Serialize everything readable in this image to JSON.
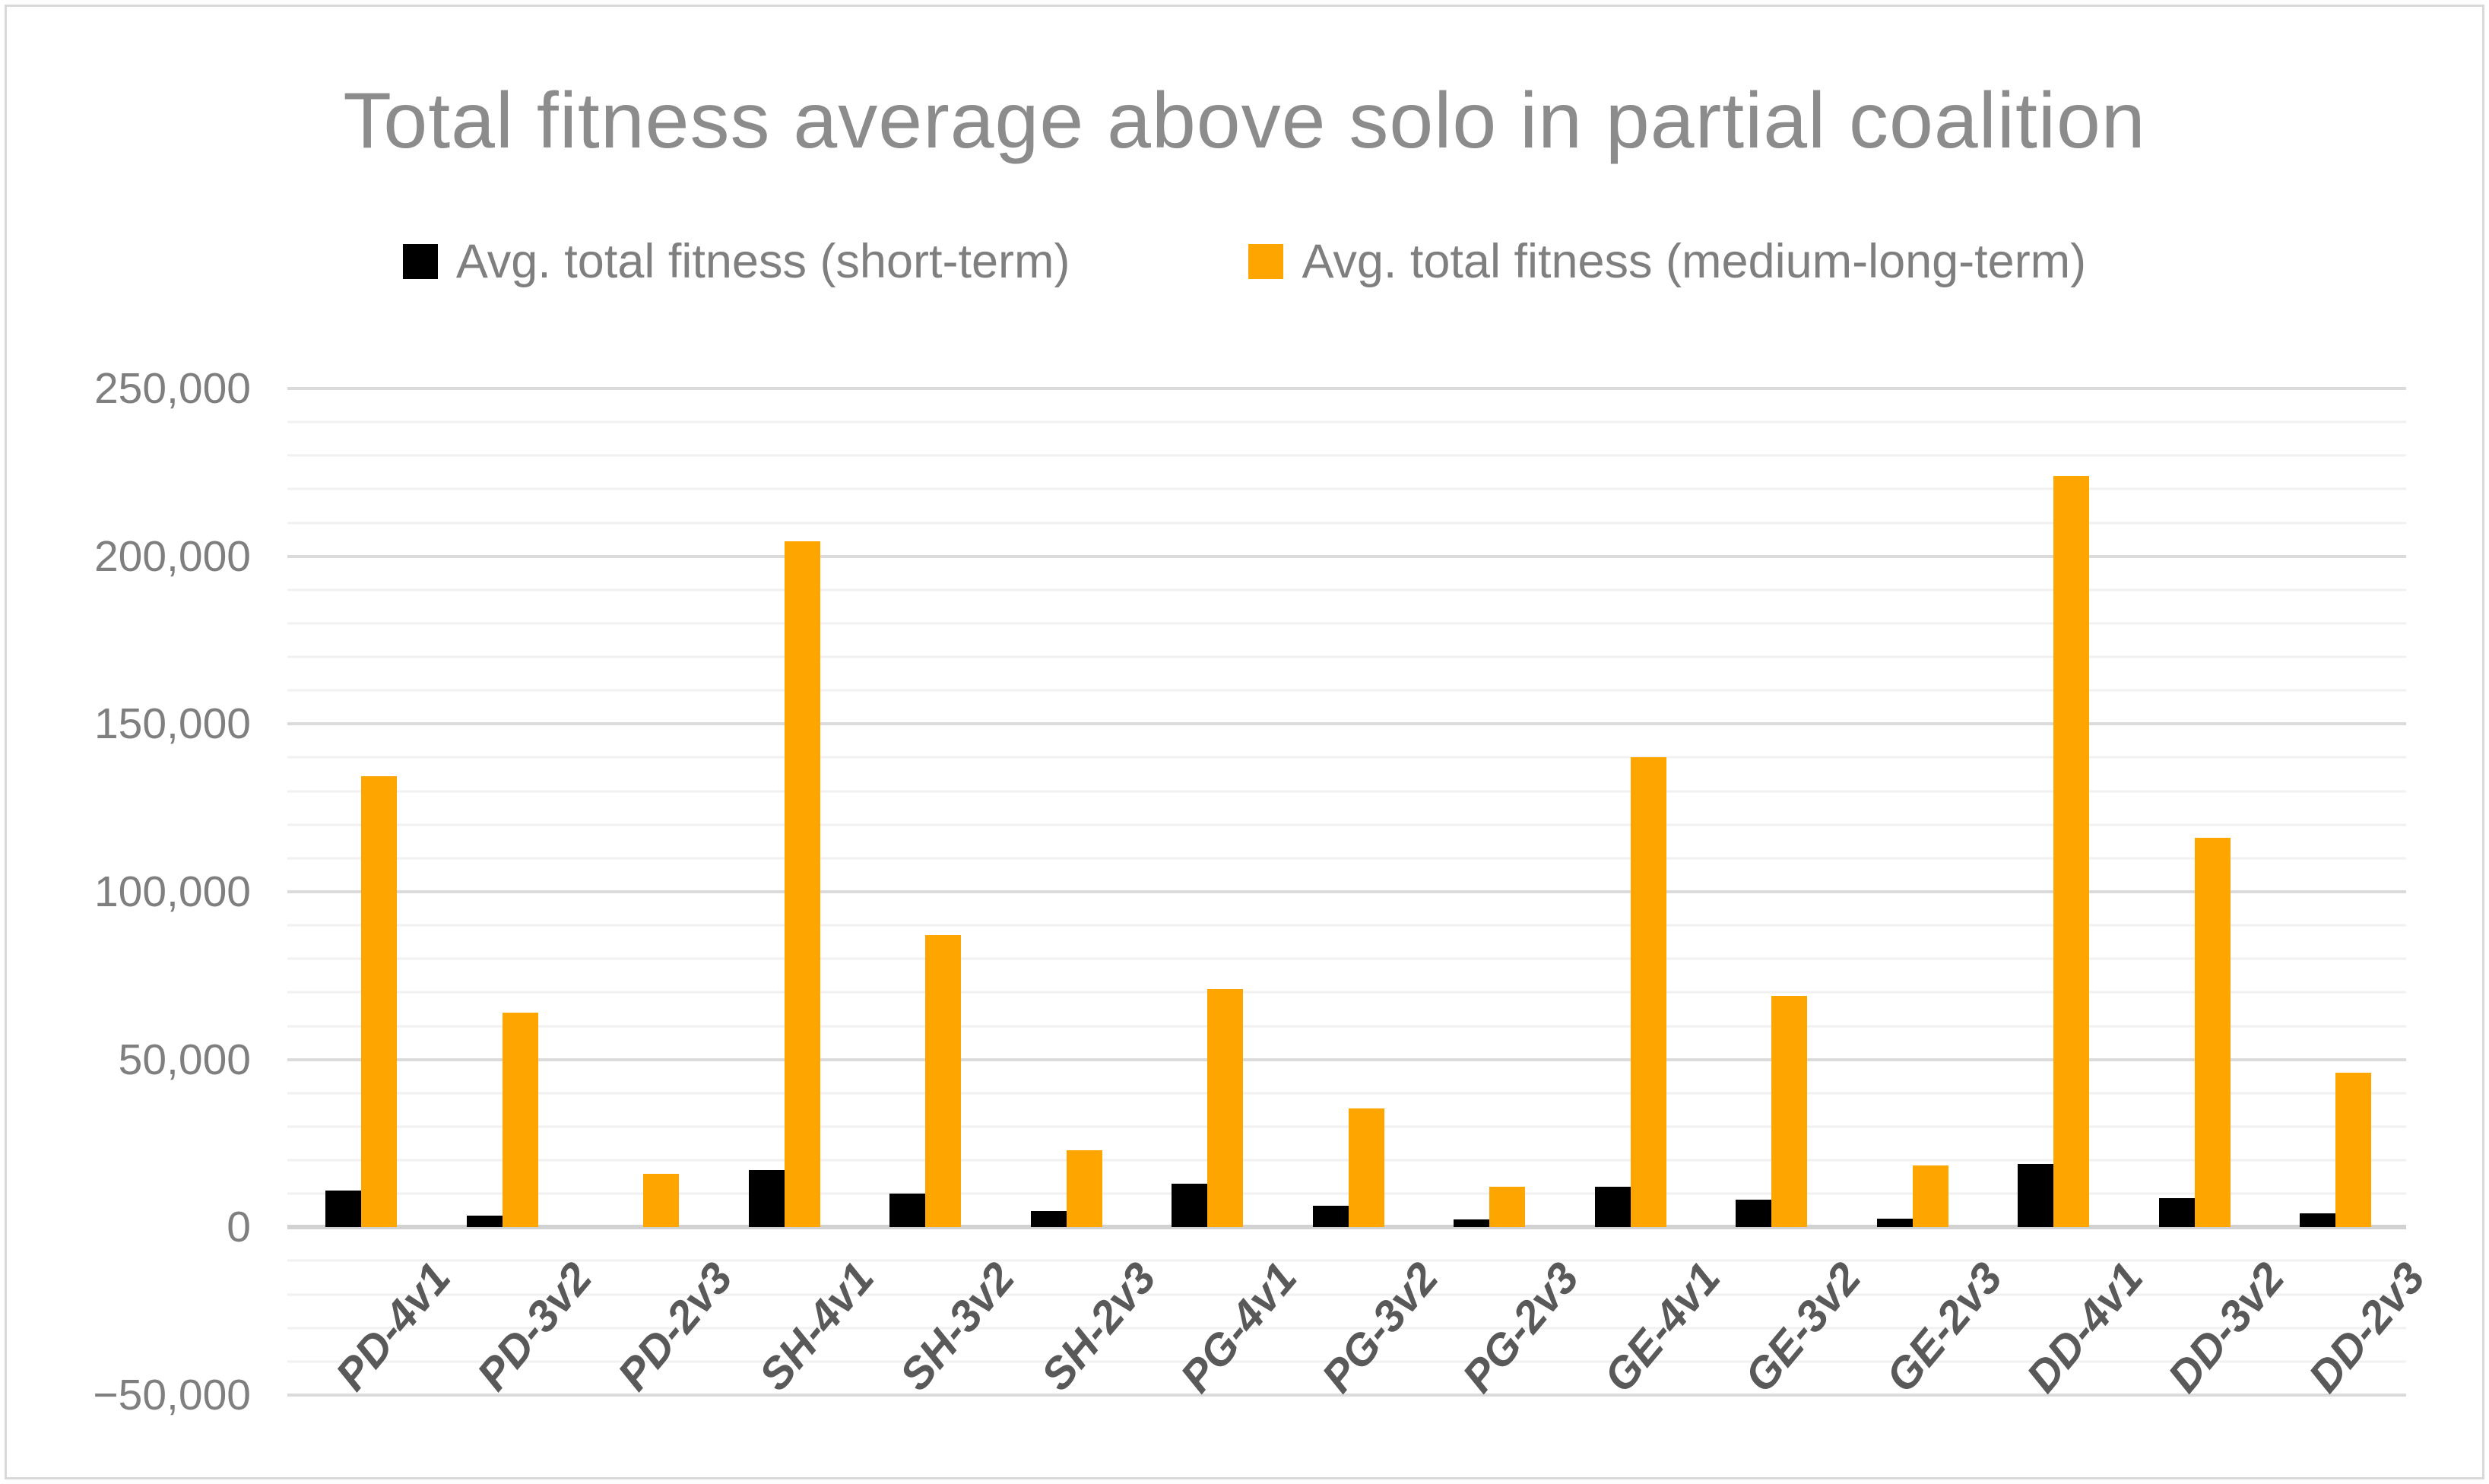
{
  "chart_data": {
    "type": "bar",
    "title": "Total fitness average above solo in partial coalition",
    "categories": [
      "PD-4v1",
      "PD-3v2",
      "PD-2v3",
      "SH-4v1",
      "SH-3v2",
      "SH-2v3",
      "PG-4v1",
      "PG-3v2",
      "PG-2v3",
      "GE-4v1",
      "GE-3v2",
      "GE-2v3",
      "DD-4v1",
      "DD-3v2",
      "DD-2v3"
    ],
    "series": [
      {
        "name": "Avg. total fitness (short-term)",
        "color": "#000000",
        "values": [
          11000,
          3500,
          0,
          17000,
          10000,
          4800,
          13000,
          6500,
          2400,
          12000,
          8200,
          2600,
          18800,
          8600,
          4200
        ]
      },
      {
        "name": "Avg. total fitness (medium-long-term)",
        "color": "#ffa500",
        "values": [
          134500,
          64000,
          16000,
          204500,
          87000,
          23000,
          71000,
          35500,
          12000,
          140000,
          69000,
          18500,
          224000,
          116000,
          46000
        ]
      }
    ],
    "y_axis": {
      "min": -50000,
      "max": 250000,
      "major_step": 50000,
      "minor_step": 10000,
      "tick_labels": [
        "250,000",
        "200,000",
        "150,000",
        "100,000",
        "50,000",
        "0",
        "−50,000"
      ]
    },
    "xlabel": "",
    "ylabel": "",
    "legend_position": "top-center",
    "grid": "horizontal major+minor",
    "colors": {
      "title_text": "#8c8c8c",
      "axis_text": "#7f7f7f",
      "category_text": "#595959",
      "gridline_major": "#dbdbdb",
      "gridline_minor": "#f1f1f1",
      "frame_border": "#d9d9d9"
    }
  }
}
